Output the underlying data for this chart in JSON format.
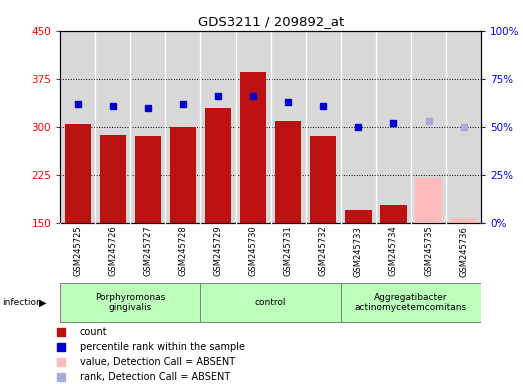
{
  "title": "GDS3211 / 209892_at",
  "samples": [
    "GSM245725",
    "GSM245726",
    "GSM245727",
    "GSM245728",
    "GSM245729",
    "GSM245730",
    "GSM245731",
    "GSM245732",
    "GSM245733",
    "GSM245734",
    "GSM245735",
    "GSM245736"
  ],
  "bar_values": [
    304,
    287,
    285,
    300,
    330,
    385,
    309,
    286,
    170,
    178,
    220,
    157
  ],
  "bar_absent": [
    false,
    false,
    false,
    false,
    false,
    false,
    false,
    false,
    false,
    false,
    true,
    true
  ],
  "dot_values": [
    62,
    61,
    60,
    62,
    66,
    66,
    63,
    61,
    50,
    52,
    53,
    50
  ],
  "dot_absent": [
    false,
    false,
    false,
    false,
    false,
    false,
    false,
    false,
    false,
    false,
    true,
    true
  ],
  "ylim_left": [
    150,
    450
  ],
  "ylim_right": [
    0,
    100
  ],
  "yticks_left": [
    150,
    225,
    300,
    375,
    450
  ],
  "yticks_right": [
    0,
    25,
    50,
    75,
    100
  ],
  "ytick_labels_right": [
    "0%",
    "25%",
    "50%",
    "75%",
    "100%"
  ],
  "group_labels": [
    "Porphyromonas\ngingivalis",
    "control",
    "Aggregatibacter\nactinomycetemcomitans"
  ],
  "group_ranges": [
    [
      0,
      3
    ],
    [
      4,
      7
    ],
    [
      8,
      11
    ]
  ],
  "bar_color_present": "#bb1111",
  "bar_color_absent": "#ffbbbb",
  "dot_color_present": "#0000cc",
  "dot_color_absent": "#aaaadd",
  "infection_label": "infection",
  "background_color": "#ffffff",
  "plot_bg": "#d8d8d8",
  "group_bg": "#bbffbb",
  "legend_items": [
    {
      "color": "#bb1111",
      "label": "count"
    },
    {
      "color": "#0000cc",
      "label": "percentile rank within the sample"
    },
    {
      "color": "#ffbbbb",
      "label": "value, Detection Call = ABSENT"
    },
    {
      "color": "#aaaadd",
      "label": "rank, Detection Call = ABSENT"
    }
  ]
}
